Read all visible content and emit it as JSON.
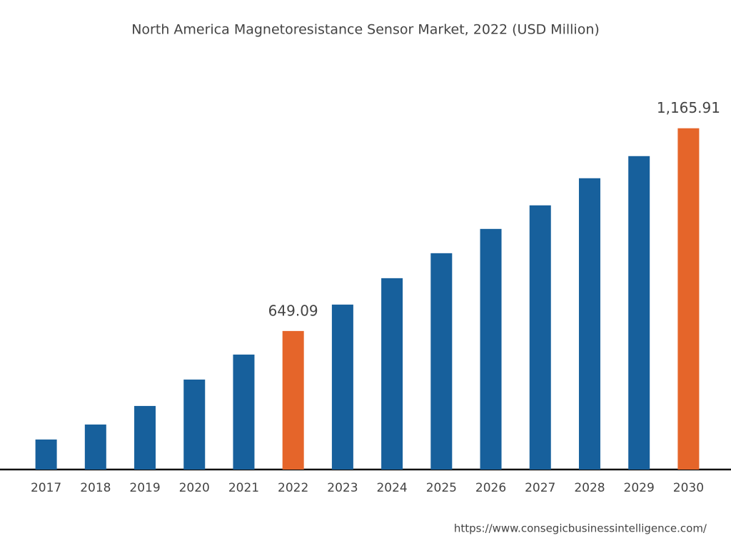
{
  "chart_data": {
    "type": "bar",
    "title": "North America Magnetoresistance Sensor Market, 2022 (USD Million)",
    "categories": [
      "2017",
      "2018",
      "2019",
      "2020",
      "2021",
      "2022",
      "2023",
      "2024",
      "2025",
      "2026",
      "2027",
      "2028",
      "2029",
      "2030"
    ],
    "values": [
      372.5,
      410.7,
      458,
      525.3,
      589,
      649.09,
      716.4,
      783.7,
      847.4,
      909.3,
      969.4,
      1038.5,
      1094.9,
      1165.91
    ],
    "value_labels": [
      null,
      null,
      null,
      null,
      null,
      "649.09",
      null,
      null,
      null,
      null,
      null,
      null,
      null,
      "1,165.91"
    ],
    "colors": [
      "#17609c",
      "#17609c",
      "#17609c",
      "#17609c",
      "#17609c",
      "#e5652a",
      "#17609c",
      "#17609c",
      "#17609c",
      "#17609c",
      "#17609c",
      "#17609c",
      "#17609c",
      "#e5652a"
    ],
    "ylim": [
      296,
      1200
    ],
    "source": "https://www.consegicbusinessintelligence.com/"
  }
}
